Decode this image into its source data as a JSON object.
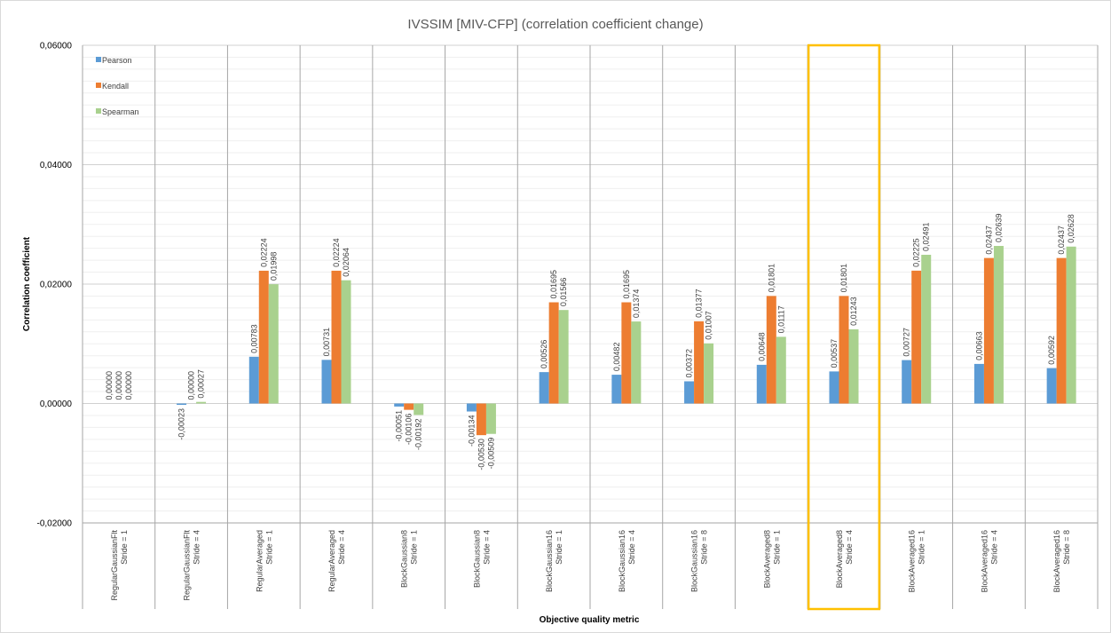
{
  "chart_data": {
    "type": "bar",
    "title": "IVSSIM [MIV-CFP] (correlation coefficient change)",
    "xlabel": "Objective quality metric",
    "ylabel": "Correlation coefficient",
    "ylim": [
      -0.02,
      0.06
    ],
    "yticks": [
      "-0,02000",
      "0,00000",
      "0,02000",
      "0,04000",
      "0,06000"
    ],
    "ytick_values": [
      -0.02,
      0.0,
      0.02,
      0.04,
      0.06
    ],
    "grid": true,
    "legend_position": "top-left",
    "categories": [
      [
        "RegularGaussianFlt",
        "Stride = 1"
      ],
      [
        "RegularGaussianFlt",
        "Stride = 4"
      ],
      [
        "RegularAveraged",
        "Stride = 1"
      ],
      [
        "RegularAveraged",
        "Stride = 4"
      ],
      [
        "BlockGaussian8",
        "Stride = 1"
      ],
      [
        "BlockGaussian8",
        "Stride = 4"
      ],
      [
        "BlockGaussian16",
        "Stride = 1"
      ],
      [
        "BlockGaussian16",
        "Stride = 4"
      ],
      [
        "BlockGaussian16",
        "Stride = 8"
      ],
      [
        "BlockAveraged8",
        "Stride = 1"
      ],
      [
        "BlockAveraged8",
        "Stride = 4"
      ],
      [
        "BlockAveraged16",
        "Stride = 1"
      ],
      [
        "BlockAveraged16",
        "Stride = 4"
      ],
      [
        "BlockAveraged16",
        "Stride = 8"
      ]
    ],
    "series": [
      {
        "name": "Pearson",
        "color": "#5b9bd5",
        "values": [
          0.0,
          -0.00023,
          0.00783,
          0.00731,
          -0.00051,
          -0.00134,
          0.00526,
          0.00482,
          0.00372,
          0.00648,
          0.00537,
          0.00727,
          0.00663,
          0.00592
        ],
        "labels": [
          "0,00000",
          "-0,00023",
          "0,00783",
          "0,00731",
          "-0,00051",
          "-0,00134",
          "0,00526",
          "0,00482",
          "0,00372",
          "0,00648",
          "0,00537",
          "0,00727",
          "0,00663",
          "0,00592"
        ]
      },
      {
        "name": "Kendall",
        "color": "#ed7d31",
        "values": [
          0.0,
          0.0,
          0.02224,
          0.02224,
          -0.00106,
          -0.0053,
          0.01695,
          0.01695,
          0.01377,
          0.01801,
          0.01801,
          0.02225,
          0.02437,
          0.02437
        ],
        "labels": [
          "0,00000",
          "0,00000",
          "0,02224",
          "0,02224",
          "-0,00106",
          "-0,00530",
          "0,01695",
          "0,01695",
          "0,01377",
          "0,01801",
          "0,01801",
          "0,02225",
          "0,02437",
          "0,02437"
        ]
      },
      {
        "name": "Spearman",
        "color": "#a9d18e",
        "values": [
          0.0,
          0.00027,
          0.01998,
          0.02064,
          -0.00192,
          -0.00509,
          0.01566,
          0.01374,
          0.01007,
          0.01117,
          0.01243,
          0.02491,
          0.02639,
          0.02628
        ],
        "labels": [
          "0,00000",
          "0,00027",
          "0,01998",
          "0,02064",
          "-0,00192",
          "-0,00509",
          "0,01566",
          "0,01374",
          "0,01007",
          "0,01117",
          "0,01243",
          "0,02491",
          "0,02639",
          "0,02628"
        ]
      }
    ],
    "highlight": {
      "category_index": 10,
      "color": "#ffc000"
    }
  }
}
